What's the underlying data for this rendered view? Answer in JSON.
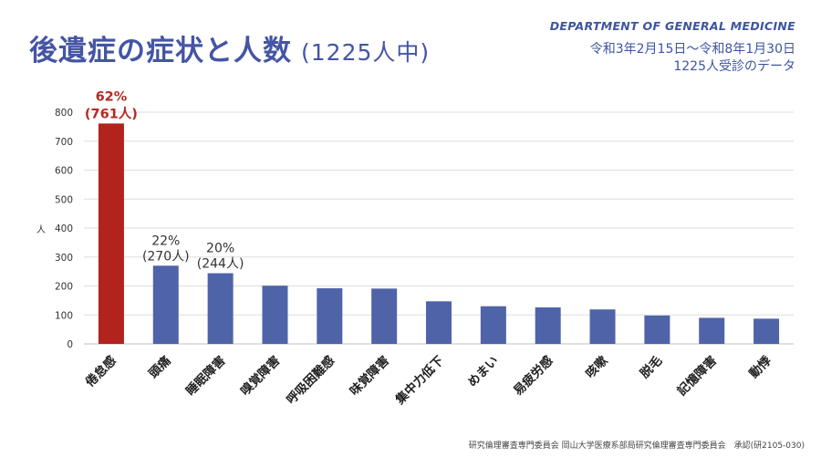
{
  "header": {
    "title": "後遺症の症状と人数",
    "subtitle": "(1225人中)",
    "department": "DEPARTMENT OF GENERAL MEDICINE",
    "period": "令和3年2月15日〜令和8年1月30日",
    "patients": "1225人受診のデータ"
  },
  "footer": {
    "note": "研究倫理審査専門委員会 岡山大学医療系部局研究倫理審査専門委員会　承認(研2105-030)"
  },
  "colors": {
    "bar": "#4f63a8",
    "highlight_bar": "#b1231c",
    "title": "#4455a4"
  },
  "chart_data": {
    "type": "bar",
    "title": "後遺症の症状と人数",
    "xlabel": "",
    "ylabel": "人",
    "ylim": [
      0,
      800
    ],
    "yticks": [
      0,
      100,
      200,
      300,
      400,
      500,
      600,
      700,
      800
    ],
    "grid": true,
    "categories": [
      "倦怠感",
      "頭痛",
      "睡眠障害",
      "嗅覚障害",
      "呼吸困難感",
      "味覚障害",
      "集中力低下",
      "めまい",
      "易疲労感",
      "咳嗽",
      "脱毛",
      "記憶障害",
      "動悸"
    ],
    "values": [
      761,
      270,
      244,
      201,
      192,
      191,
      147,
      130,
      126,
      119,
      98,
      90,
      87
    ],
    "highlight_index": 0,
    "annotations": [
      {
        "index": 0,
        "lines": [
          "62%",
          "(761人)"
        ]
      },
      {
        "index": 1,
        "lines": [
          "22%",
          "(270人)"
        ]
      },
      {
        "index": 2,
        "lines": [
          "20%",
          "(244人)"
        ]
      }
    ]
  }
}
